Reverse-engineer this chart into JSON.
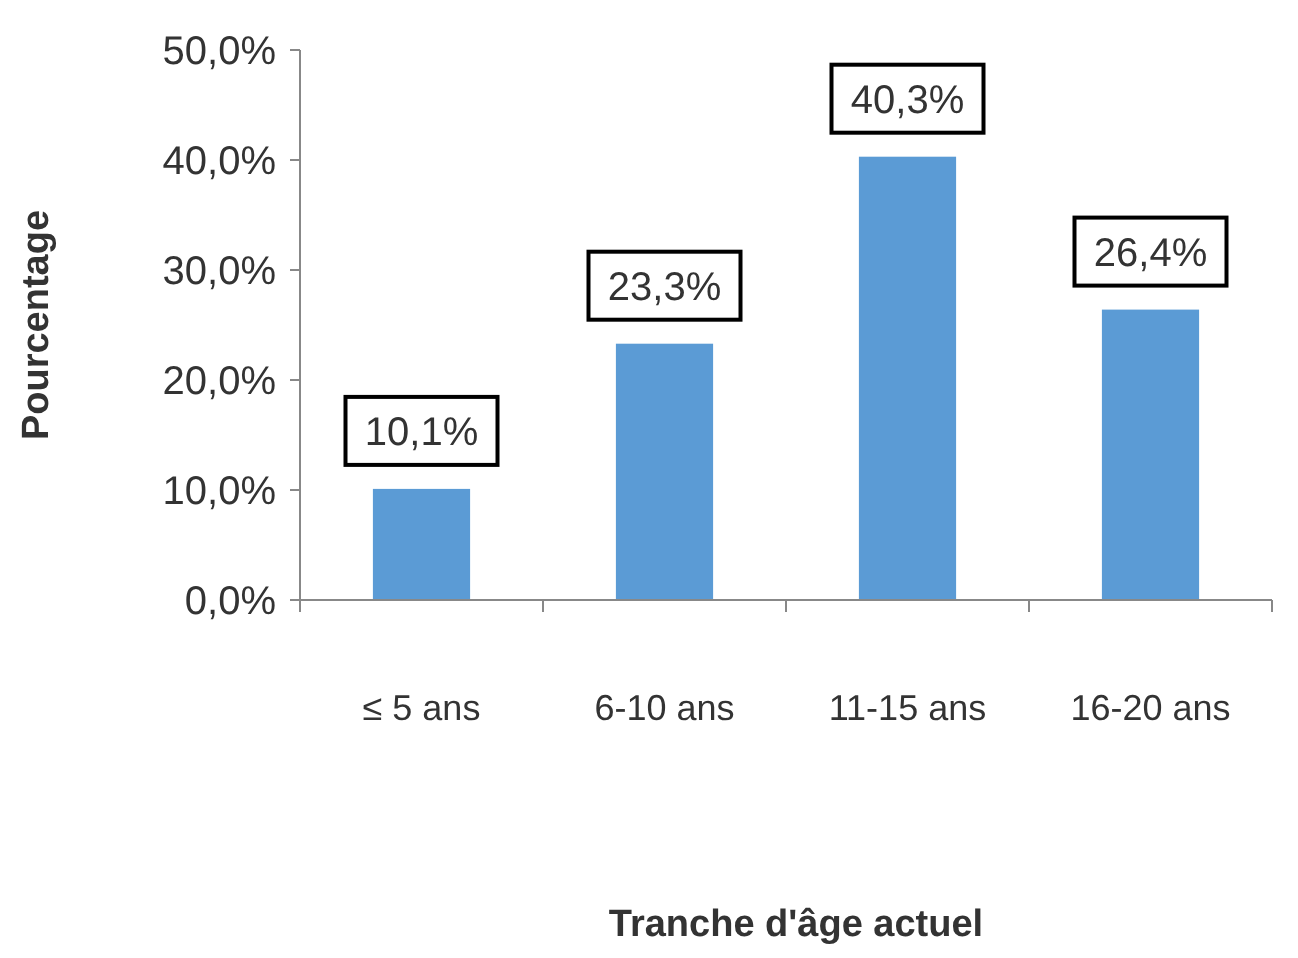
{
  "chart_data": {
    "type": "bar",
    "xlabel": "Tranche d'âge actuel",
    "ylabel": "Pourcentage",
    "categories": [
      "≤ 5 ans",
      "6-10 ans",
      "11-15 ans",
      "16-20 ans"
    ],
    "values": [
      10.1,
      23.3,
      40.3,
      26.4
    ],
    "color": "#5b9bd5",
    "value_labels": [
      "10,1%",
      "23,3%",
      "40,3%",
      "26,4%"
    ],
    "ylim": [
      0,
      50
    ],
    "yticks": [
      {
        "value": 0,
        "label": "0,0%"
      },
      {
        "value": 10,
        "label": "10,0%"
      },
      {
        "value": 20,
        "label": "20,0%"
      },
      {
        "value": 30,
        "label": "30,0%"
      },
      {
        "value": 40,
        "label": "40,0%"
      },
      {
        "value": 50,
        "label": "50,0%"
      }
    ],
    "grid": false
  }
}
